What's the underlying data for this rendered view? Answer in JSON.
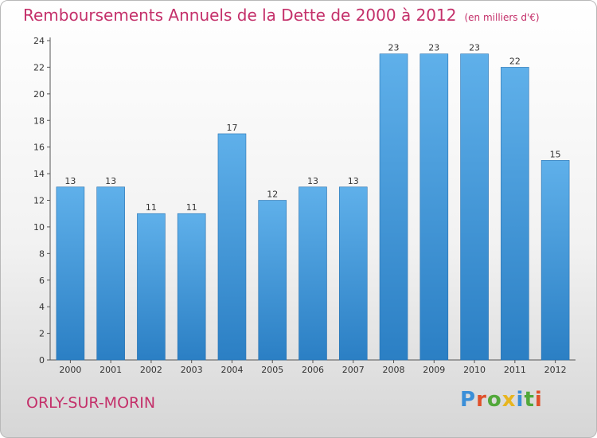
{
  "header": {
    "title": "Remboursements Annuels de la Dette de 2000 à 2012",
    "unit": "(en milliers d'€)"
  },
  "footer": {
    "city": "ORLY-SUR-MORIN",
    "logo": "Proxiti"
  },
  "colors": {
    "bar_light": "#5fb0ea",
    "bar_dark": "#2b7fc4",
    "title": "#c4306a"
  },
  "chart_data": {
    "type": "bar",
    "title": "Remboursements Annuels de la Dette de 2000 à 2012",
    "subtitle": "(en milliers d'€)",
    "categories": [
      "2000",
      "2001",
      "2002",
      "2003",
      "2004",
      "2005",
      "2006",
      "2007",
      "2008",
      "2009",
      "2010",
      "2011",
      "2012"
    ],
    "values": [
      13,
      13,
      11,
      11,
      17,
      12,
      13,
      13,
      23,
      23,
      23,
      22,
      15
    ],
    "ylim": [
      0,
      24
    ],
    "yticks": [
      0,
      2,
      4,
      6,
      8,
      10,
      12,
      14,
      16,
      18,
      20,
      22,
      24
    ],
    "grid": false
  }
}
